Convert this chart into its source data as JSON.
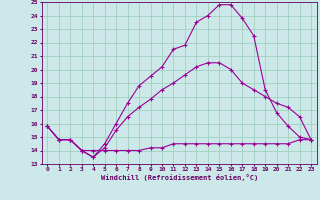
{
  "xlabel": "Windchill (Refroidissement éolien,°C)",
  "background_color": "#cce8e8",
  "grid_color": "#99ccbb",
  "line_color": "#990099",
  "xmin": 0,
  "xmax": 23,
  "ymin": 13,
  "ymax": 25,
  "line1_x": [
    0,
    1,
    2,
    3,
    4,
    5,
    6,
    7,
    8,
    9,
    10,
    11,
    12,
    13,
    14,
    15,
    16,
    17,
    18,
    19,
    20,
    21,
    22,
    23
  ],
  "line1_y": [
    15.8,
    14.8,
    14.8,
    14.0,
    13.5,
    14.5,
    16.0,
    17.5,
    18.8,
    19.5,
    20.2,
    21.5,
    21.8,
    23.5,
    24.0,
    24.8,
    24.8,
    23.8,
    22.5,
    18.5,
    16.8,
    15.8,
    15.0,
    14.8
  ],
  "line2_x": [
    0,
    1,
    2,
    3,
    4,
    5,
    6,
    7,
    8,
    9,
    10,
    11,
    12,
    13,
    14,
    15,
    16,
    17,
    18,
    19,
    20,
    21,
    22,
    23
  ],
  "line2_y": [
    15.8,
    14.8,
    14.8,
    14.0,
    13.5,
    14.2,
    15.5,
    16.5,
    17.2,
    17.8,
    18.5,
    19.0,
    19.6,
    20.2,
    20.5,
    20.5,
    20.0,
    19.0,
    18.5,
    18.0,
    17.5,
    17.2,
    16.5,
    14.8
  ],
  "line3_x": [
    0,
    1,
    2,
    3,
    4,
    5,
    6,
    7,
    8,
    9,
    10,
    11,
    12,
    13,
    14,
    15,
    16,
    17,
    18,
    19,
    20,
    21,
    22,
    23
  ],
  "line3_y": [
    15.8,
    14.8,
    14.8,
    14.0,
    14.0,
    14.0,
    14.0,
    14.0,
    14.0,
    14.2,
    14.2,
    14.5,
    14.5,
    14.5,
    14.5,
    14.5,
    14.5,
    14.5,
    14.5,
    14.5,
    14.5,
    14.5,
    14.8,
    14.8
  ]
}
